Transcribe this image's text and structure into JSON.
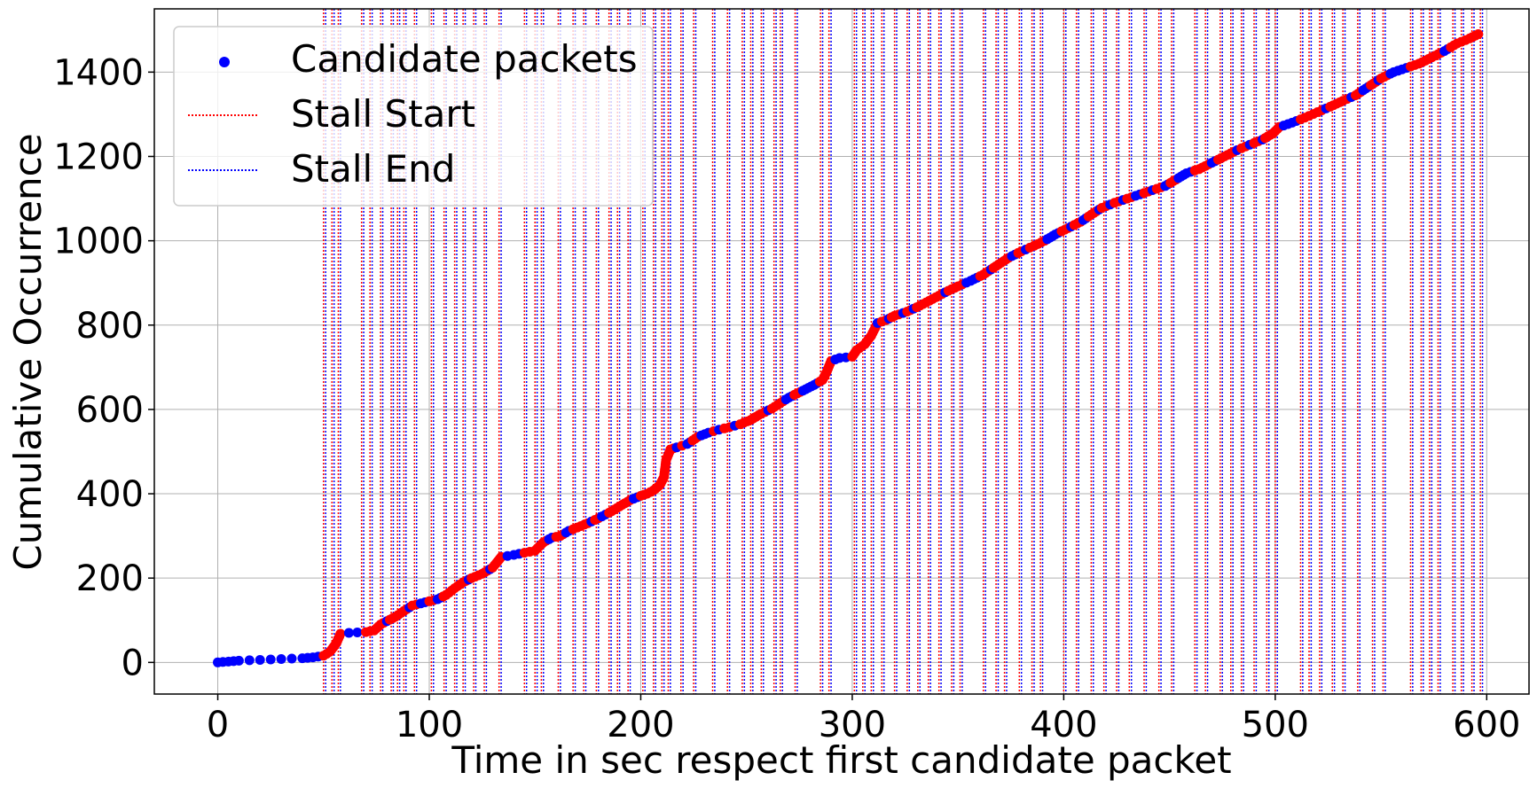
{
  "chart_data": {
    "type": "scatter",
    "xlabel": "Time in sec respect first candidate packet",
    "ylabel": "Cumulative Occurrence",
    "xlim": [
      -30,
      620
    ],
    "ylim": [
      -75,
      1550
    ],
    "xticks": [
      0,
      100,
      200,
      300,
      400,
      500,
      600
    ],
    "yticks": [
      0,
      200,
      400,
      600,
      800,
      1000,
      1200,
      1400
    ],
    "grid": true,
    "legend_position": "top-left",
    "legend": [
      {
        "label": "Candidate packets",
        "kind": "marker",
        "color": "#0000ff"
      },
      {
        "label": "Stall Start",
        "kind": "dotted-line",
        "color": "#ff0000"
      },
      {
        "label": "Stall End",
        "kind": "dotted-line",
        "color": "#0000ff"
      }
    ],
    "series": [
      {
        "name": "Candidate packets",
        "color": "#0000ff",
        "stalled_color": "#ff0000",
        "points": [
          [
            0,
            0
          ],
          [
            5,
            2
          ],
          [
            10,
            4
          ],
          [
            15,
            5
          ],
          [
            20,
            6
          ],
          [
            25,
            7
          ],
          [
            30,
            8
          ],
          [
            35,
            9
          ],
          [
            40,
            10
          ],
          [
            45,
            12
          ],
          [
            50,
            16
          ],
          [
            53,
            25
          ],
          [
            56,
            45
          ],
          [
            58,
            68
          ],
          [
            62,
            70
          ],
          [
            66,
            71
          ],
          [
            70,
            72
          ],
          [
            74,
            76
          ],
          [
            77,
            90
          ],
          [
            80,
            98
          ],
          [
            84,
            108
          ],
          [
            88,
            122
          ],
          [
            92,
            135
          ],
          [
            96,
            140
          ],
          [
            100,
            145
          ],
          [
            104,
            150
          ],
          [
            108,
            160
          ],
          [
            112,
            176
          ],
          [
            116,
            190
          ],
          [
            120,
            200
          ],
          [
            125,
            210
          ],
          [
            130,
            225
          ],
          [
            134,
            250
          ],
          [
            140,
            255
          ],
          [
            145,
            260
          ],
          [
            150,
            265
          ],
          [
            154,
            285
          ],
          [
            158,
            296
          ],
          [
            162,
            300
          ],
          [
            166,
            312
          ],
          [
            170,
            320
          ],
          [
            175,
            330
          ],
          [
            180,
            342
          ],
          [
            185,
            355
          ],
          [
            190,
            370
          ],
          [
            195,
            385
          ],
          [
            200,
            395
          ],
          [
            203,
            400
          ],
          [
            206,
            408
          ],
          [
            209,
            420
          ],
          [
            211,
            440
          ],
          [
            212,
            480
          ],
          [
            214,
            505
          ],
          [
            217,
            510
          ],
          [
            222,
            518
          ],
          [
            227,
            535
          ],
          [
            232,
            545
          ],
          [
            237,
            552
          ],
          [
            242,
            558
          ],
          [
            247,
            565
          ],
          [
            252,
            575
          ],
          [
            257,
            590
          ],
          [
            262,
            602
          ],
          [
            266,
            615
          ],
          [
            270,
            628
          ],
          [
            274,
            638
          ],
          [
            278,
            648
          ],
          [
            282,
            658
          ],
          [
            286,
            670
          ],
          [
            288,
            690
          ],
          [
            290,
            715
          ],
          [
            294,
            722
          ],
          [
            300,
            725
          ],
          [
            302,
            740
          ],
          [
            306,
            755
          ],
          [
            309,
            775
          ],
          [
            312,
            805
          ],
          [
            316,
            812
          ],
          [
            320,
            822
          ],
          [
            326,
            832
          ],
          [
            332,
            846
          ],
          [
            338,
            862
          ],
          [
            344,
            878
          ],
          [
            350,
            892
          ],
          [
            356,
            905
          ],
          [
            362,
            920
          ],
          [
            368,
            940
          ],
          [
            374,
            960
          ],
          [
            380,
            975
          ],
          [
            386,
            988
          ],
          [
            391,
            1000
          ],
          [
            396,
            1015
          ],
          [
            402,
            1030
          ],
          [
            408,
            1045
          ],
          [
            413,
            1062
          ],
          [
            418,
            1078
          ],
          [
            424,
            1090
          ],
          [
            430,
            1100
          ],
          [
            436,
            1110
          ],
          [
            442,
            1120
          ],
          [
            448,
            1130
          ],
          [
            453,
            1145
          ],
          [
            458,
            1160
          ],
          [
            464,
            1170
          ],
          [
            470,
            1185
          ],
          [
            476,
            1200
          ],
          [
            482,
            1215
          ],
          [
            488,
            1228
          ],
          [
            494,
            1240
          ],
          [
            499,
            1255
          ],
          [
            502,
            1270
          ],
          [
            508,
            1280
          ],
          [
            514,
            1292
          ],
          [
            520,
            1305
          ],
          [
            526,
            1318
          ],
          [
            532,
            1332
          ],
          [
            538,
            1345
          ],
          [
            544,
            1365
          ],
          [
            550,
            1385
          ],
          [
            556,
            1400
          ],
          [
            562,
            1410
          ],
          [
            568,
            1420
          ],
          [
            574,
            1435
          ],
          [
            580,
            1450
          ],
          [
            586,
            1468
          ],
          [
            592,
            1480
          ],
          [
            596,
            1490
          ]
        ]
      }
    ],
    "stall_periods": [
      [
        50,
        51
      ],
      [
        54,
        55
      ],
      [
        57,
        58
      ],
      [
        68,
        69
      ],
      [
        72,
        73
      ],
      [
        77,
        78
      ],
      [
        82,
        83
      ],
      [
        85,
        86
      ],
      [
        88,
        89
      ],
      [
        93,
        94
      ],
      [
        101,
        102
      ],
      [
        107,
        108
      ],
      [
        112,
        113
      ],
      [
        116,
        117
      ],
      [
        121,
        122
      ],
      [
        126,
        127
      ],
      [
        133,
        134
      ],
      [
        145,
        146
      ],
      [
        150,
        151
      ],
      [
        153,
        154
      ],
      [
        161,
        162
      ],
      [
        168,
        169
      ],
      [
        173,
        174
      ],
      [
        179,
        180
      ],
      [
        185,
        186
      ],
      [
        189,
        190
      ],
      [
        194,
        195
      ],
      [
        201,
        202
      ],
      [
        206,
        207
      ],
      [
        210,
        211
      ],
      [
        213,
        214
      ],
      [
        219,
        220
      ],
      [
        225,
        226
      ],
      [
        234,
        235
      ],
      [
        241,
        242
      ],
      [
        248,
        249
      ],
      [
        252,
        253
      ],
      [
        257,
        258
      ],
      [
        263,
        264
      ],
      [
        266,
        267
      ],
      [
        273,
        274
      ],
      [
        285,
        286
      ],
      [
        289,
        290
      ],
      [
        301,
        302
      ],
      [
        305,
        306
      ],
      [
        309,
        310
      ],
      [
        314,
        315
      ],
      [
        320,
        321
      ],
      [
        326,
        327
      ],
      [
        331,
        332
      ],
      [
        336,
        337
      ],
      [
        341,
        342
      ],
      [
        347,
        348
      ],
      [
        351,
        352
      ],
      [
        362,
        363
      ],
      [
        368,
        369
      ],
      [
        372,
        373
      ],
      [
        379,
        380
      ],
      [
        385,
        386
      ],
      [
        389,
        390
      ],
      [
        400,
        401
      ],
      [
        406,
        407
      ],
      [
        413,
        414
      ],
      [
        419,
        420
      ],
      [
        425,
        426
      ],
      [
        431,
        432
      ],
      [
        438,
        439
      ],
      [
        445,
        446
      ],
      [
        451,
        452
      ],
      [
        462,
        463
      ],
      [
        467,
        468
      ],
      [
        474,
        475
      ],
      [
        479,
        480
      ],
      [
        484,
        485
      ],
      [
        490,
        491
      ],
      [
        496,
        497
      ],
      [
        500,
        501
      ],
      [
        512,
        513
      ],
      [
        516,
        517
      ],
      [
        521,
        522
      ],
      [
        527,
        528
      ],
      [
        532,
        533
      ],
      [
        539,
        540
      ],
      [
        546,
        547
      ],
      [
        551,
        552
      ],
      [
        564,
        565
      ],
      [
        569,
        570
      ],
      [
        573,
        574
      ],
      [
        577,
        578
      ],
      [
        584,
        585
      ],
      [
        588,
        589
      ],
      [
        593,
        594
      ],
      [
        597,
        598
      ]
    ]
  }
}
